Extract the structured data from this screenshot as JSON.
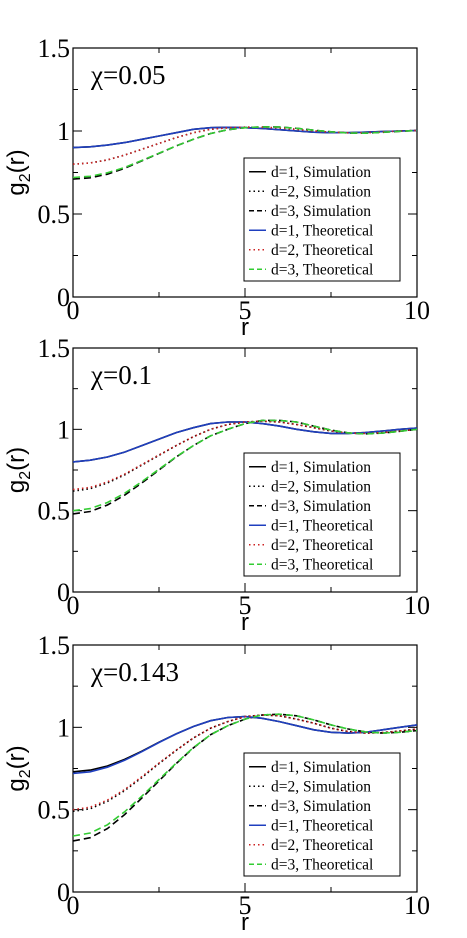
{
  "chart_data": [
    {
      "type": "line",
      "annotation": "χ=0.05",
      "xlabel": "r",
      "ylabel": "g",
      "ylabel_sub": "2",
      "ylabel_suffix": "(r)",
      "xlim": [
        0,
        10
      ],
      "ylim": [
        0,
        1.5
      ],
      "xticks": [
        "0",
        "5",
        "10"
      ],
      "yticks": [
        "0",
        "0.5",
        "1",
        "1.5"
      ],
      "legend_position": "lower-right",
      "series": [
        {
          "name": "d=1, Simulation",
          "color": "#000000",
          "dash": "solid",
          "x": [
            0,
            0.5,
            1,
            1.5,
            2,
            2.5,
            3,
            3.5,
            4,
            4.5,
            5,
            5.5,
            6,
            6.5,
            7,
            7.5,
            8,
            8.5,
            9,
            9.5,
            10
          ],
          "y": [
            0.9,
            0.905,
            0.915,
            0.93,
            0.95,
            0.97,
            0.99,
            1.01,
            1.02,
            1.022,
            1.02,
            1.015,
            1.008,
            1.0,
            0.993,
            0.99,
            0.99,
            0.993,
            0.997,
            1.0,
            1.003
          ]
        },
        {
          "name": "d=2, Simulation",
          "color": "#000000",
          "dash": "dotted",
          "x": [
            0,
            0.5,
            1,
            1.5,
            2,
            2.5,
            3,
            3.5,
            4,
            4.5,
            5,
            5.5,
            6,
            6.5,
            7,
            7.5,
            8,
            8.5,
            9,
            9.5,
            10
          ],
          "y": [
            0.8,
            0.807,
            0.826,
            0.855,
            0.89,
            0.925,
            0.96,
            0.99,
            1.01,
            1.02,
            1.023,
            1.022,
            1.018,
            1.01,
            1.0,
            0.993,
            0.989,
            0.99,
            0.995,
            1.0,
            1.003
          ]
        },
        {
          "name": "d=3, Simulation",
          "color": "#000000",
          "dash": "dashed",
          "x": [
            0,
            0.5,
            1,
            1.5,
            2,
            2.5,
            3,
            3.5,
            4,
            4.5,
            5,
            5.5,
            6,
            6.5,
            7,
            7.5,
            8,
            8.5,
            9,
            9.5,
            10
          ],
          "y": [
            0.71,
            0.718,
            0.74,
            0.775,
            0.82,
            0.865,
            0.91,
            0.95,
            0.985,
            1.008,
            1.02,
            1.025,
            1.024,
            1.016,
            1.005,
            0.995,
            0.988,
            0.987,
            0.992,
            0.998,
            1.003
          ]
        },
        {
          "name": "d=1, Theoretical",
          "color": "#1f3fbf",
          "dash": "solid",
          "x": [
            0,
            0.5,
            1,
            1.5,
            2,
            2.5,
            3,
            3.5,
            4,
            4.5,
            5,
            5.5,
            6,
            6.5,
            7,
            7.5,
            8,
            8.5,
            9,
            9.5,
            10
          ],
          "y": [
            0.9,
            0.905,
            0.915,
            0.93,
            0.95,
            0.97,
            0.99,
            1.01,
            1.02,
            1.022,
            1.02,
            1.015,
            1.008,
            1.0,
            0.993,
            0.99,
            0.99,
            0.993,
            0.997,
            1.0,
            1.003
          ]
        },
        {
          "name": "d=2, Theoretical",
          "color": "#cc2222",
          "dash": "dotted",
          "x": [
            0,
            0.5,
            1,
            1.5,
            2,
            2.5,
            3,
            3.5,
            4,
            4.5,
            5,
            5.5,
            6,
            6.5,
            7,
            7.5,
            8,
            8.5,
            9,
            9.5,
            10
          ],
          "y": [
            0.8,
            0.807,
            0.826,
            0.855,
            0.89,
            0.925,
            0.96,
            0.99,
            1.01,
            1.02,
            1.023,
            1.022,
            1.018,
            1.01,
            1.0,
            0.993,
            0.989,
            0.99,
            0.995,
            1.0,
            1.003
          ]
        },
        {
          "name": "d=3, Theoretical",
          "color": "#33cc33",
          "dash": "dashed",
          "x": [
            0,
            0.5,
            1,
            1.5,
            2,
            2.5,
            3,
            3.5,
            4,
            4.5,
            5,
            5.5,
            6,
            6.5,
            7,
            7.5,
            8,
            8.5,
            9,
            9.5,
            10
          ],
          "y": [
            0.72,
            0.727,
            0.748,
            0.78,
            0.822,
            0.866,
            0.91,
            0.95,
            0.985,
            1.008,
            1.02,
            1.025,
            1.024,
            1.016,
            1.005,
            0.995,
            0.988,
            0.987,
            0.992,
            0.998,
            1.003
          ]
        }
      ]
    },
    {
      "type": "line",
      "annotation": "χ=0.1",
      "xlabel": "r",
      "ylabel": "g",
      "ylabel_sub": "2",
      "ylabel_suffix": "(r)",
      "xlim": [
        0,
        10
      ],
      "ylim": [
        0,
        1.5
      ],
      "xticks": [
        "0",
        "5",
        "10"
      ],
      "yticks": [
        "0",
        "0.5",
        "1",
        "1.5"
      ],
      "legend_position": "lower-right",
      "series": [
        {
          "name": "d=1, Simulation",
          "color": "#000000",
          "dash": "solid",
          "x": [
            0,
            0.5,
            1,
            1.5,
            2,
            2.5,
            3,
            3.5,
            4,
            4.5,
            5,
            5.5,
            6,
            6.5,
            7,
            7.5,
            8,
            8.5,
            9,
            9.5,
            10
          ],
          "y": [
            0.8,
            0.81,
            0.83,
            0.86,
            0.9,
            0.94,
            0.98,
            1.01,
            1.035,
            1.045,
            1.045,
            1.035,
            1.02,
            1.0,
            0.985,
            0.975,
            0.975,
            0.98,
            0.99,
            1.0,
            1.008
          ]
        },
        {
          "name": "d=2, Simulation",
          "color": "#000000",
          "dash": "dotted",
          "x": [
            0,
            0.5,
            1,
            1.5,
            2,
            2.5,
            3,
            3.5,
            4,
            4.5,
            5,
            5.5,
            6,
            6.5,
            7,
            7.5,
            8,
            8.5,
            9,
            9.5,
            10
          ],
          "y": [
            0.62,
            0.635,
            0.67,
            0.72,
            0.78,
            0.84,
            0.9,
            0.955,
            1.0,
            1.03,
            1.045,
            1.05,
            1.045,
            1.03,
            1.01,
            0.99,
            0.977,
            0.975,
            0.98,
            0.99,
            1.0
          ]
        },
        {
          "name": "d=3, Simulation",
          "color": "#000000",
          "dash": "dashed",
          "x": [
            0,
            0.5,
            1,
            1.5,
            2,
            2.5,
            3,
            3.5,
            4,
            4.5,
            5,
            5.5,
            6,
            6.5,
            7,
            7.5,
            8,
            8.5,
            9,
            9.5,
            10
          ],
          "y": [
            0.48,
            0.495,
            0.535,
            0.595,
            0.67,
            0.75,
            0.83,
            0.9,
            0.96,
            1.0,
            1.035,
            1.055,
            1.055,
            1.045,
            1.02,
            0.995,
            0.978,
            0.972,
            0.977,
            0.988,
            1.0
          ]
        },
        {
          "name": "d=1, Theoretical",
          "color": "#1f3fbf",
          "dash": "solid",
          "x": [
            0,
            0.5,
            1,
            1.5,
            2,
            2.5,
            3,
            3.5,
            4,
            4.5,
            5,
            5.5,
            6,
            6.5,
            7,
            7.5,
            8,
            8.5,
            9,
            9.5,
            10
          ],
          "y": [
            0.8,
            0.81,
            0.83,
            0.86,
            0.9,
            0.94,
            0.98,
            1.01,
            1.035,
            1.045,
            1.045,
            1.035,
            1.02,
            1.0,
            0.985,
            0.975,
            0.975,
            0.98,
            0.99,
            1.0,
            1.008
          ]
        },
        {
          "name": "d=2, Theoretical",
          "color": "#cc2222",
          "dash": "dotted",
          "x": [
            0,
            0.5,
            1,
            1.5,
            2,
            2.5,
            3,
            3.5,
            4,
            4.5,
            5,
            5.5,
            6,
            6.5,
            7,
            7.5,
            8,
            8.5,
            9,
            9.5,
            10
          ],
          "y": [
            0.63,
            0.643,
            0.677,
            0.725,
            0.783,
            0.843,
            0.9,
            0.955,
            1.0,
            1.03,
            1.045,
            1.05,
            1.045,
            1.03,
            1.01,
            0.99,
            0.977,
            0.975,
            0.98,
            0.99,
            1.0
          ]
        },
        {
          "name": "d=3, Theoretical",
          "color": "#33cc33",
          "dash": "dashed",
          "x": [
            0,
            0.5,
            1,
            1.5,
            2,
            2.5,
            3,
            3.5,
            4,
            4.5,
            5,
            5.5,
            6,
            6.5,
            7,
            7.5,
            8,
            8.5,
            9,
            9.5,
            10
          ],
          "y": [
            0.5,
            0.513,
            0.55,
            0.607,
            0.678,
            0.755,
            0.832,
            0.9,
            0.96,
            1.0,
            1.035,
            1.055,
            1.055,
            1.045,
            1.02,
            0.995,
            0.978,
            0.972,
            0.977,
            0.988,
            1.0
          ]
        }
      ]
    },
    {
      "type": "line",
      "annotation": "χ=0.143",
      "xlabel": "r",
      "ylabel": "g",
      "ylabel_sub": "2",
      "ylabel_suffix": "(r)",
      "xlim": [
        0,
        10
      ],
      "ylim": [
        0,
        1.5
      ],
      "xticks": [
        "0",
        "5",
        "10"
      ],
      "yticks": [
        "0",
        "0.5",
        "1",
        "1.5"
      ],
      "legend_position": "lower-right",
      "series": [
        {
          "name": "d=1, Simulation",
          "color": "#000000",
          "dash": "solid",
          "x": [
            0,
            0.5,
            1,
            1.5,
            2,
            2.5,
            3,
            3.5,
            4,
            4.5,
            5,
            5.5,
            6,
            6.5,
            7,
            7.5,
            8,
            8.5,
            9,
            9.5,
            10
          ],
          "y": [
            0.73,
            0.74,
            0.765,
            0.805,
            0.855,
            0.91,
            0.96,
            1.005,
            1.04,
            1.06,
            1.065,
            1.055,
            1.035,
            1.01,
            0.985,
            0.97,
            0.965,
            0.97,
            0.985,
            1.0,
            1.015
          ]
        },
        {
          "name": "d=2, Simulation",
          "color": "#000000",
          "dash": "dotted",
          "x": [
            0,
            0.5,
            1,
            1.5,
            2,
            2.5,
            3,
            3.5,
            4,
            4.5,
            5,
            5.5,
            6,
            6.5,
            7,
            7.5,
            8,
            8.5,
            9,
            9.5,
            10
          ],
          "y": [
            0.49,
            0.505,
            0.55,
            0.615,
            0.695,
            0.78,
            0.86,
            0.935,
            0.995,
            1.035,
            1.065,
            1.075,
            1.07,
            1.05,
            1.025,
            0.995,
            0.975,
            0.965,
            0.968,
            0.978,
            0.99
          ]
        },
        {
          "name": "d=3, Simulation",
          "color": "#000000",
          "dash": "dashed",
          "x": [
            0,
            0.5,
            1,
            1.5,
            2,
            2.5,
            3,
            3.5,
            4,
            4.5,
            5,
            5.5,
            6,
            6.5,
            7,
            7.5,
            8,
            8.5,
            9,
            9.5,
            10
          ],
          "y": [
            0.31,
            0.33,
            0.385,
            0.47,
            0.57,
            0.675,
            0.78,
            0.875,
            0.955,
            1.01,
            1.05,
            1.075,
            1.08,
            1.07,
            1.045,
            1.015,
            0.99,
            0.972,
            0.965,
            0.97,
            0.98
          ]
        },
        {
          "name": "d=1, Theoretical",
          "color": "#1f3fbf",
          "dash": "solid",
          "x": [
            0,
            0.5,
            1,
            1.5,
            2,
            2.5,
            3,
            3.5,
            4,
            4.5,
            5,
            5.5,
            6,
            6.5,
            7,
            7.5,
            8,
            8.5,
            9,
            9.5,
            10
          ],
          "y": [
            0.72,
            0.73,
            0.758,
            0.8,
            0.852,
            0.908,
            0.96,
            1.005,
            1.04,
            1.06,
            1.065,
            1.055,
            1.035,
            1.01,
            0.985,
            0.97,
            0.965,
            0.97,
            0.985,
            1.0,
            1.015
          ]
        },
        {
          "name": "d=2, Theoretical",
          "color": "#cc2222",
          "dash": "dotted",
          "x": [
            0,
            0.5,
            1,
            1.5,
            2,
            2.5,
            3,
            3.5,
            4,
            4.5,
            5,
            5.5,
            6,
            6.5,
            7,
            7.5,
            8,
            8.5,
            9,
            9.5,
            10
          ],
          "y": [
            0.5,
            0.515,
            0.558,
            0.622,
            0.7,
            0.783,
            0.862,
            0.935,
            0.995,
            1.035,
            1.065,
            1.075,
            1.07,
            1.05,
            1.025,
            0.995,
            0.975,
            0.965,
            0.968,
            0.978,
            0.99
          ]
        },
        {
          "name": "d=3, Theoretical",
          "color": "#33cc33",
          "dash": "dashed",
          "x": [
            0,
            0.5,
            1,
            1.5,
            2,
            2.5,
            3,
            3.5,
            4,
            4.5,
            5,
            5.5,
            6,
            6.5,
            7,
            7.5,
            8,
            8.5,
            9,
            9.5,
            10
          ],
          "y": [
            0.34,
            0.358,
            0.408,
            0.487,
            0.582,
            0.683,
            0.783,
            0.877,
            0.955,
            1.01,
            1.05,
            1.075,
            1.08,
            1.07,
            1.045,
            1.015,
            0.99,
            0.972,
            0.965,
            0.97,
            0.98
          ]
        }
      ]
    }
  ]
}
